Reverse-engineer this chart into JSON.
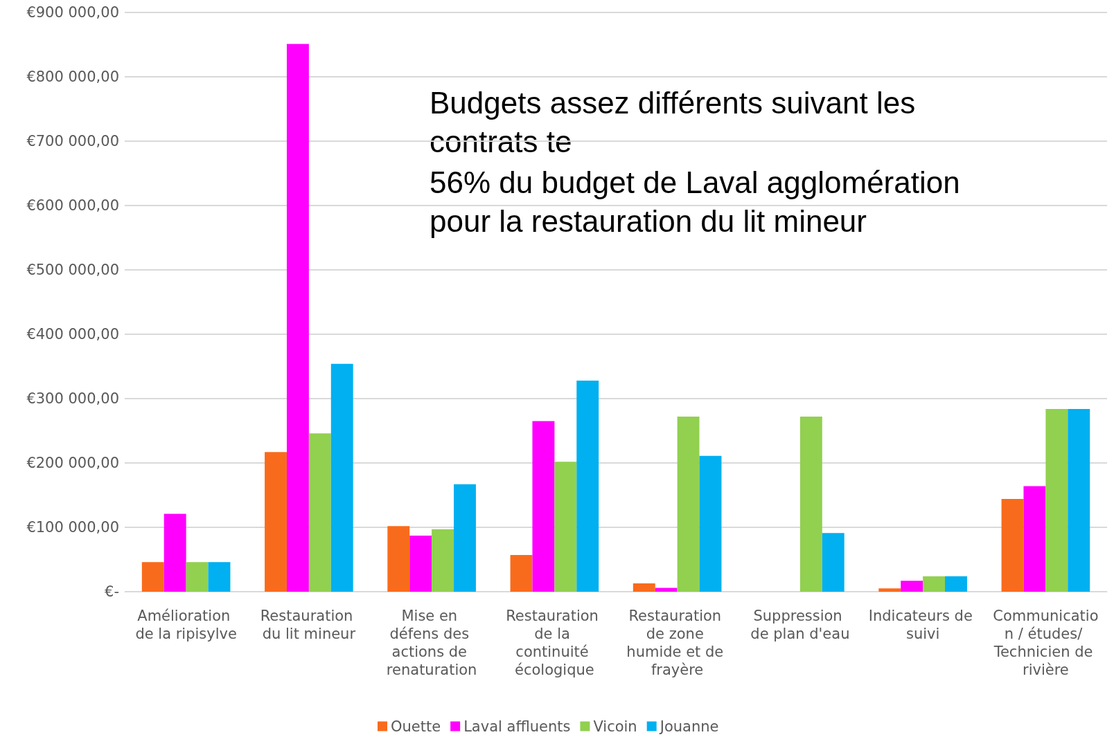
{
  "chart_data": {
    "type": "bar",
    "categories": [
      "Amélioration de la ripisylve",
      "Restauration du lit mineur",
      "Mise en défens des actions de renaturation",
      "Restauration de la continuité écologique",
      "Restauration de zone humide et de frayère",
      "Suppression de plan d'eau",
      "Indicateurs de suivi",
      "Communication / études/ Technicien de rivière"
    ],
    "series": [
      {
        "name": "Ouette",
        "color": "#f96b1c",
        "values": [
          46000,
          217000,
          102000,
          57000,
          13000,
          0,
          5000,
          144000
        ]
      },
      {
        "name": "Laval affluents",
        "color": "#ff00ff",
        "values": [
          121000,
          851000,
          87000,
          265000,
          6000,
          0,
          17000,
          164000
        ]
      },
      {
        "name": "Vicoin",
        "color": "#92d050",
        "values": [
          46000,
          246000,
          97000,
          202000,
          272000,
          272000,
          24000,
          284000
        ]
      },
      {
        "name": "Jouanne",
        "color": "#00b0f0",
        "values": [
          46000,
          354000,
          167000,
          328000,
          211000,
          91000,
          24000,
          284000
        ]
      }
    ],
    "ylim": [
      0,
      900000
    ],
    "yticks": [
      {
        "value": 0,
        "label": "€-"
      },
      {
        "value": 100000,
        "label": "€100 000,00"
      },
      {
        "value": 200000,
        "label": "€200 000,00"
      },
      {
        "value": 300000,
        "label": "€300 000,00"
      },
      {
        "value": 400000,
        "label": "€400 000,00"
      },
      {
        "value": 500000,
        "label": "€500 000,00"
      },
      {
        "value": 600000,
        "label": "€600 000,00"
      },
      {
        "value": 700000,
        "label": "€700 000,00"
      },
      {
        "value": 800000,
        "label": "€800 000,00"
      },
      {
        "value": 900000,
        "label": "€900 000,00"
      }
    ],
    "grid": "y",
    "legend": "bottom",
    "annotations": [
      "Budgets assez différents suivant les contrats te",
      "56% du budget de Laval agglomération pour la restauration du lit mineur"
    ]
  }
}
